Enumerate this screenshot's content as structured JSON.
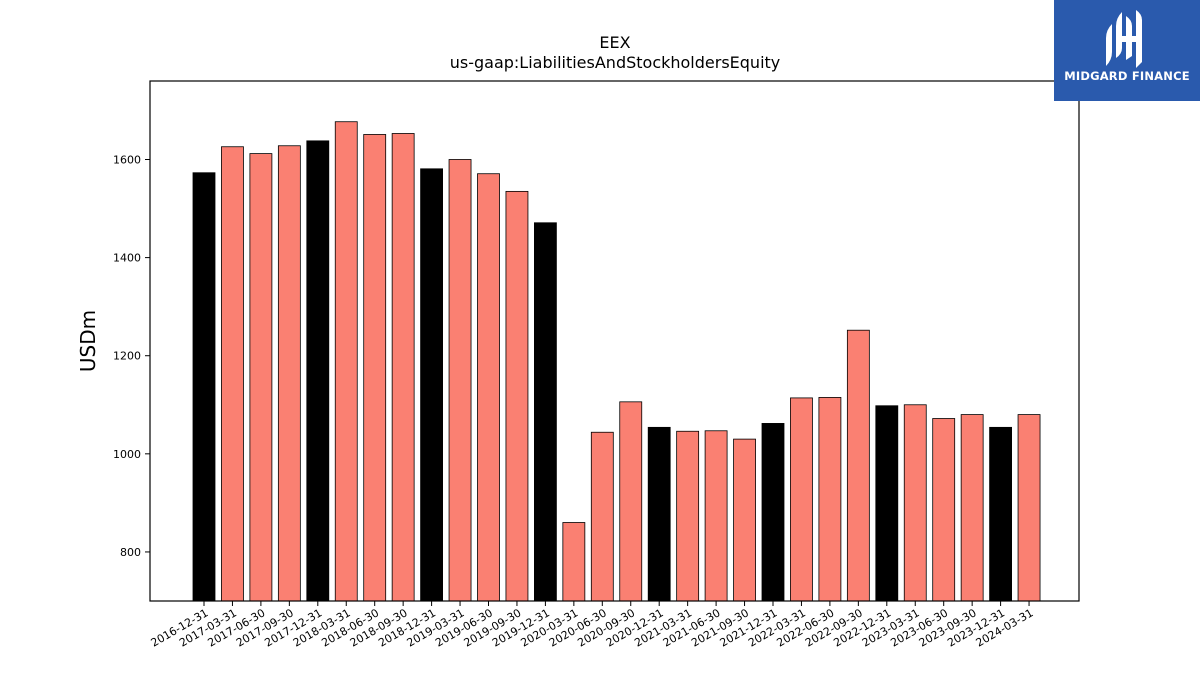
{
  "chart_data": {
    "type": "bar",
    "title": "EEX",
    "subtitle": "us-gaap:LiabilitiesAndStockholdersEquity",
    "xlabel": "",
    "ylabel": "USDm",
    "ylim": [
      700,
      1760
    ],
    "yticks": [
      800,
      1000,
      1200,
      1400,
      1600
    ],
    "grid": false,
    "categories": [
      "2016-12-31",
      "2017-03-31",
      "2017-06-30",
      "2017-09-30",
      "2017-12-31",
      "2018-03-31",
      "2018-06-30",
      "2018-09-30",
      "2018-12-31",
      "2019-03-31",
      "2019-06-30",
      "2019-09-30",
      "2019-12-31",
      "2020-03-31",
      "2020-06-30",
      "2020-09-30",
      "2020-12-31",
      "2021-03-31",
      "2021-06-30",
      "2021-09-30",
      "2021-12-31",
      "2022-03-31",
      "2022-06-30",
      "2022-09-30",
      "2022-12-31",
      "2023-03-31",
      "2023-06-30",
      "2023-09-30",
      "2023-12-31",
      "2024-03-31"
    ],
    "values": [
      1573,
      1626,
      1612,
      1628,
      1638,
      1677,
      1651,
      1653,
      1581,
      1600,
      1571,
      1535,
      1471,
      860,
      1044,
      1106,
      1054,
      1046,
      1047,
      1030,
      1062,
      1114,
      1115,
      1252,
      1098,
      1100,
      1072,
      1080,
      1054,
      1080
    ],
    "colors": {
      "annual": "#000000",
      "quarterly": "#fa8072"
    },
    "bar_kind": [
      "annual",
      "quarterly",
      "quarterly",
      "quarterly",
      "annual",
      "quarterly",
      "quarterly",
      "quarterly",
      "annual",
      "quarterly",
      "quarterly",
      "quarterly",
      "annual",
      "quarterly",
      "quarterly",
      "quarterly",
      "annual",
      "quarterly",
      "quarterly",
      "quarterly",
      "annual",
      "quarterly",
      "quarterly",
      "quarterly",
      "annual",
      "quarterly",
      "quarterly",
      "quarterly",
      "annual",
      "quarterly"
    ]
  },
  "logo": {
    "text": "MIDGARD FINANCE",
    "icon": "midgard-logo-icon",
    "background": "#2a5aad"
  }
}
